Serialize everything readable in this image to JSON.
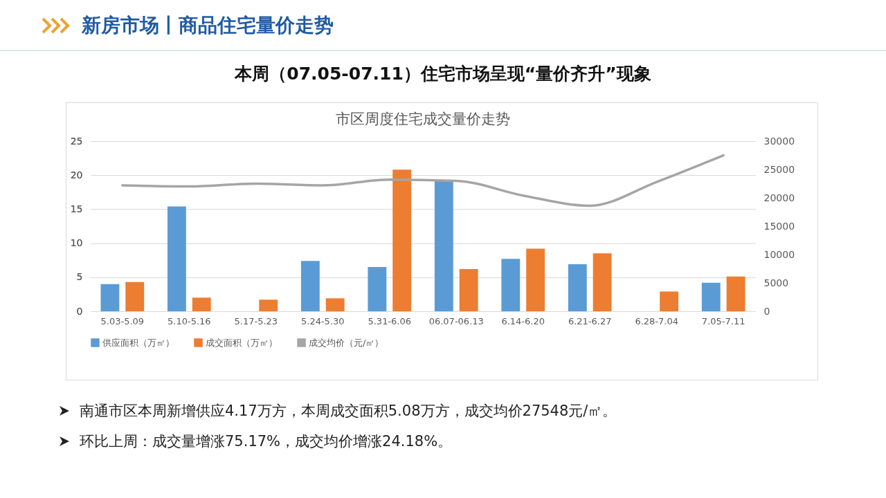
{
  "chart_data": {
    "type": "bar",
    "title": "市区周度住宅成交量价走势",
    "categories": [
      "5.03-5.09",
      "5.10-5.16",
      "5.17-5.23",
      "5.24-5.30",
      "5.31-6.06",
      "06.07-06.13",
      "6.14-6.20",
      "6.21-6.27",
      "6.28-7.04",
      "7.05-7.11"
    ],
    "series": [
      {
        "name": "供应面积（万㎡）",
        "color": "#5b9bd5",
        "values": [
          4.0,
          15.4,
          null,
          7.4,
          6.5,
          19.2,
          7.7,
          6.9,
          null,
          4.2
        ]
      },
      {
        "name": "成交面积（万㎡）",
        "color": "#ed7d31",
        "values": [
          4.3,
          2.0,
          1.7,
          1.9,
          20.8,
          6.2,
          9.2,
          8.5,
          2.9,
          5.1
        ]
      },
      {
        "name": "成交均价（元/㎡）",
        "type": "line",
        "axis": "y2",
        "color": "#a5a5a5",
        "values": [
          22200,
          22000,
          22500,
          22200,
          23200,
          23000,
          20400,
          18600,
          22800,
          27500
        ]
      }
    ],
    "ylim": [
      0,
      25
    ],
    "yticks": [
      0,
      5,
      10,
      15,
      20,
      25
    ],
    "y2lim": [
      0,
      30000
    ],
    "y2ticks": [
      0,
      5000,
      10000,
      15000,
      20000,
      25000,
      30000
    ],
    "grid": "y",
    "legend": "bottom",
    "annotations": [
      "新房市场丨商品住宅量价走势",
      "本周（07.05-07.11）住宅市场呈现“量价齐升”现象",
      "南通市区本周新增供应4.17万方，本周成交面积5.08万方，成交均价27548元/㎡。",
      "环比上周：成交量增涨75.17%，成交均价增涨24.18%。"
    ]
  }
}
